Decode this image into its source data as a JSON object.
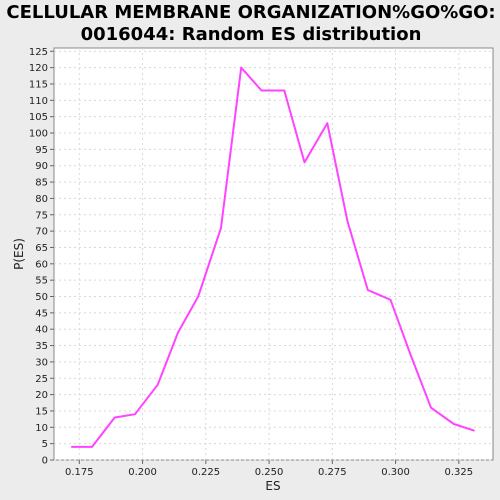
{
  "chart_data": {
    "type": "line",
    "title_lines": [
      "CELLULAR MEMBRANE ORGANIZATION%GO%GO:",
      "0016044: Random ES distribution"
    ],
    "xlabel": "ES",
    "ylabel": "P(ES)",
    "xlim": [
      0.165,
      0.3385
    ],
    "ylim": [
      0,
      126
    ],
    "x_ticks": [
      0.175,
      0.2,
      0.225,
      0.25,
      0.275,
      0.3,
      0.325
    ],
    "x_tick_labels": [
      "0.175",
      "0.200",
      "0.225",
      "0.250",
      "0.275",
      "0.300",
      "0.325"
    ],
    "y_ticks": [
      0,
      5,
      10,
      15,
      20,
      25,
      30,
      35,
      40,
      45,
      50,
      55,
      60,
      65,
      70,
      75,
      80,
      85,
      90,
      95,
      100,
      105,
      110,
      115,
      120,
      125
    ],
    "y_tick_labels": [
      "0",
      "5",
      "10",
      "15",
      "20",
      "25",
      "30",
      "35",
      "40",
      "45",
      "50",
      "55",
      "60",
      "65",
      "70",
      "75",
      "80",
      "85",
      "90",
      "95",
      "100",
      "105",
      "110",
      "115",
      "120",
      "125"
    ],
    "grid": true,
    "line_color": "#ff44ff",
    "series": [
      {
        "x": [
          0.172,
          0.18,
          0.189,
          0.197,
          0.206,
          0.214,
          0.222,
          0.231,
          0.239,
          0.247,
          0.256,
          0.264,
          0.273,
          0.281,
          0.289,
          0.298,
          0.306,
          0.314,
          0.323,
          0.331
        ],
        "values": [
          4,
          4,
          13,
          14,
          23,
          39,
          50,
          71,
          120,
          113,
          113,
          91,
          103,
          73,
          52,
          49,
          32,
          16,
          11,
          9
        ]
      }
    ]
  }
}
